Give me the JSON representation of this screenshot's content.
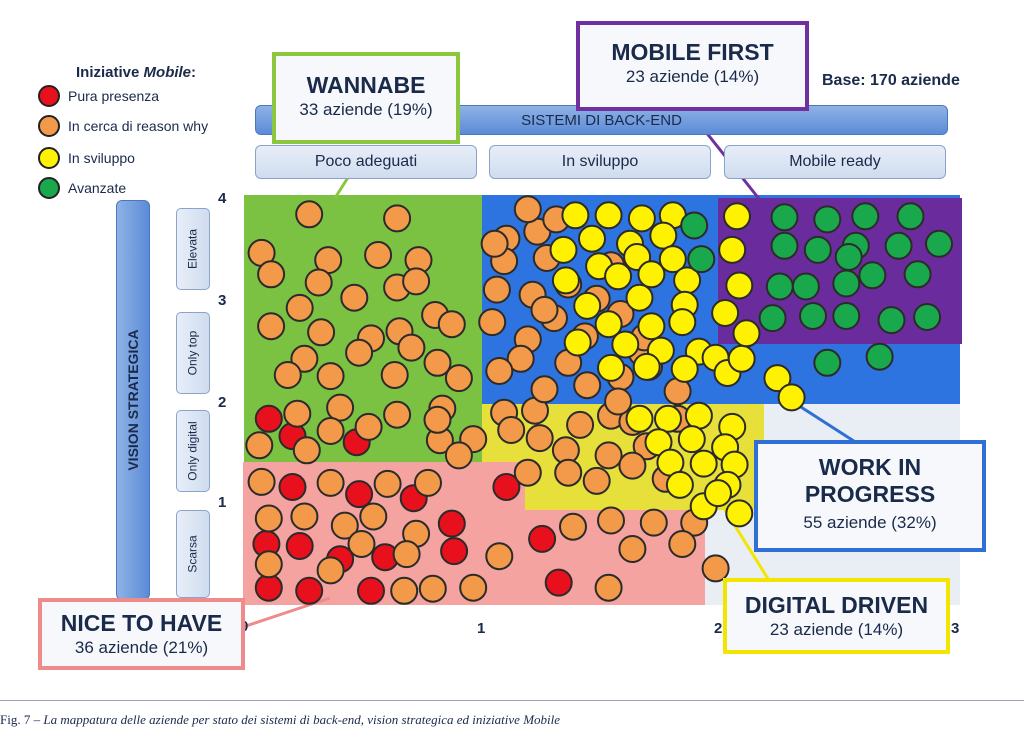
{
  "legend": {
    "title_prefix": "Iniziative ",
    "title_emph": "Mobile",
    "title_suffix": ":",
    "items": [
      {
        "label": "Pura presenza",
        "color": "#e8101c"
      },
      {
        "label": "In cerca di reason why",
        "color": "#f39a4a"
      },
      {
        "label": "In sviluppo",
        "color": "#fff200"
      },
      {
        "label": "Avanzate",
        "color": "#1aa84c"
      }
    ]
  },
  "base_label": "Base: 170 aziende",
  "x_axis": {
    "title": "SISTEMI DI BACK-END",
    "columns": [
      "Poco adeguati",
      "In sviluppo",
      "Mobile ready"
    ],
    "ticks": [
      "0",
      "1",
      "2",
      "3"
    ]
  },
  "y_axis": {
    "title": "VISION STRATEGICA",
    "rows": [
      "Elevata",
      "Only top",
      "Only digital",
      "Scarsa"
    ],
    "ticks": [
      "4",
      "3",
      "2",
      "1",
      "0"
    ]
  },
  "callouts": [
    {
      "title": "WANNABE",
      "subtitle": "33 aziende (19%)",
      "border": "#8cc63f"
    },
    {
      "title": "MOBILE FIRST",
      "subtitle": "23 aziende (14%)",
      "border": "#7030a0"
    },
    {
      "title": "WORK IN PROGRESS",
      "title_line1": "WORK IN",
      "title_line2": "PROGRESS",
      "subtitle": "55 aziende (32%)",
      "border": "#2f6fd6"
    },
    {
      "title": "DIGITAL DRIVEN",
      "subtitle": "23 aziende (14%)",
      "border": "#f2e600"
    },
    {
      "title": "NICE TO HAVE",
      "subtitle": "36 aziende (21%)",
      "border": "#ef8b8b"
    }
  ],
  "caption": {
    "prefix": "Fig. 7 – ",
    "text": "La mappatura delle aziende per stato dei sistemi di back-end, vision strategica ed iniziative Mobile"
  },
  "chart_data": {
    "type": "scatter",
    "xlabel": "SISTEMI DI BACK-END",
    "ylabel": "VISION STRATEGICA",
    "xlim": [
      0,
      3
    ],
    "ylim": [
      0,
      4
    ],
    "segments": [
      {
        "name": "WANNABE",
        "companies": 33,
        "share": "19%",
        "color": "#7cc242"
      },
      {
        "name": "MOBILE FIRST",
        "companies": 23,
        "share": "14%",
        "color": "#6a2c9c"
      },
      {
        "name": "WORK IN PROGRESS",
        "companies": 55,
        "share": "32%",
        "color": "#2e74e0"
      },
      {
        "name": "DIGITAL DRIVEN",
        "companies": 23,
        "share": "14%",
        "color": "#e8e03a"
      },
      {
        "name": "NICE TO HAVE",
        "companies": 36,
        "share": "21%",
        "color": "#f4a3a0"
      }
    ],
    "series": [
      {
        "name": "Pura presenza",
        "points": [
          [
            0.1,
            1.83
          ],
          [
            0.2,
            1.66
          ],
          [
            0.47,
            1.6
          ],
          [
            0.2,
            1.16
          ],
          [
            0.48,
            1.09
          ],
          [
            0.71,
            1.05
          ],
          [
            1.1,
            1.16
          ],
          [
            0.09,
            0.6
          ],
          [
            0.23,
            0.58
          ],
          [
            0.4,
            0.45
          ],
          [
            0.88,
            0.53
          ],
          [
            0.87,
            0.8
          ],
          [
            0.59,
            0.47
          ],
          [
            0.53,
            0.14
          ],
          [
            0.27,
            0.14
          ],
          [
            0.1,
            0.17
          ],
          [
            1.25,
            0.65
          ],
          [
            1.32,
            0.22
          ]
        ]
      },
      {
        "name": "In cerca di reason why",
        "points": [
          [
            0.27,
            3.84
          ],
          [
            0.64,
            3.8
          ],
          [
            0.07,
            3.46
          ],
          [
            0.35,
            3.39
          ],
          [
            0.56,
            3.44
          ],
          [
            0.73,
            3.39
          ],
          [
            0.11,
            3.25
          ],
          [
            0.31,
            3.17
          ],
          [
            0.46,
            3.02
          ],
          [
            0.64,
            3.12
          ],
          [
            0.72,
            3.18
          ],
          [
            0.23,
            2.92
          ],
          [
            0.8,
            2.85
          ],
          [
            0.11,
            2.74
          ],
          [
            0.32,
            2.68
          ],
          [
            0.53,
            2.62
          ],
          [
            0.65,
            2.69
          ],
          [
            0.87,
            2.76
          ],
          [
            0.25,
            2.42
          ],
          [
            0.48,
            2.48
          ],
          [
            0.7,
            2.53
          ],
          [
            0.81,
            2.38
          ],
          [
            0.18,
            2.26
          ],
          [
            0.36,
            2.25
          ],
          [
            0.63,
            2.26
          ],
          [
            0.9,
            2.23
          ],
          [
            0.22,
            1.88
          ],
          [
            0.4,
            1.94
          ],
          [
            0.64,
            1.87
          ],
          [
            0.83,
            1.93
          ],
          [
            0.06,
            1.57
          ],
          [
            0.26,
            1.52
          ],
          [
            0.36,
            1.71
          ],
          [
            0.52,
            1.75
          ],
          [
            0.82,
            1.62
          ],
          [
            0.96,
            1.63
          ],
          [
            0.81,
            1.82
          ],
          [
            0.9,
            1.47
          ],
          [
            0.07,
            1.21
          ],
          [
            0.36,
            1.2
          ],
          [
            0.77,
            1.2
          ],
          [
            0.6,
            1.19
          ],
          [
            0.1,
            0.85
          ],
          [
            0.25,
            0.87
          ],
          [
            0.42,
            0.78
          ],
          [
            0.54,
            0.87
          ],
          [
            0.72,
            0.7
          ],
          [
            0.1,
            0.4
          ],
          [
            0.49,
            0.6
          ],
          [
            0.68,
            0.5
          ],
          [
            0.79,
            0.16
          ],
          [
            0.96,
            0.17
          ],
          [
            1.07,
            0.48
          ],
          [
            0.36,
            0.34
          ],
          [
            0.67,
            0.14
          ],
          [
            1.09,
            1.89
          ],
          [
            1.22,
            1.91
          ],
          [
            1.12,
            1.72
          ],
          [
            1.24,
            1.64
          ],
          [
            1.41,
            1.77
          ],
          [
            1.54,
            1.86
          ],
          [
            1.63,
            1.8
          ],
          [
            1.82,
            1.83
          ],
          [
            1.35,
            1.52
          ],
          [
            1.53,
            1.47
          ],
          [
            1.69,
            1.56
          ],
          [
            1.19,
            1.3
          ],
          [
            1.36,
            1.3
          ],
          [
            1.63,
            1.37
          ],
          [
            1.48,
            1.22
          ],
          [
            1.77,
            1.24
          ],
          [
            1.54,
            0.83
          ],
          [
            1.72,
            0.81
          ],
          [
            1.38,
            0.77
          ],
          [
            1.89,
            0.81
          ],
          [
            1.84,
            0.6
          ],
          [
            1.63,
            0.55
          ],
          [
            1.98,
            0.36
          ],
          [
            1.53,
            0.17
          ],
          [
            1.1,
            3.6
          ],
          [
            1.23,
            3.67
          ],
          [
            1.31,
            3.79
          ],
          [
            1.19,
            3.89
          ],
          [
            1.09,
            3.38
          ],
          [
            1.27,
            3.41
          ],
          [
            1.54,
            3.34
          ],
          [
            1.06,
            3.1
          ],
          [
            1.36,
            3.15
          ],
          [
            1.21,
            3.05
          ],
          [
            1.48,
            3.01
          ],
          [
            1.04,
            2.78
          ],
          [
            1.3,
            2.82
          ],
          [
            1.58,
            2.86
          ],
          [
            1.19,
            2.61
          ],
          [
            1.43,
            2.64
          ],
          [
            1.16,
            2.42
          ],
          [
            1.36,
            2.38
          ],
          [
            1.67,
            2.48
          ],
          [
            1.26,
            2.12
          ],
          [
            1.44,
            2.16
          ],
          [
            1.58,
            2.24
          ],
          [
            1.07,
            2.3
          ],
          [
            1.7,
            2.34
          ],
          [
            1.57,
            2.0
          ],
          [
            1.82,
            2.1
          ],
          [
            1.26,
            2.9
          ],
          [
            1.68,
            2.63
          ],
          [
            1.05,
            3.55
          ]
        ]
      },
      {
        "name": "In sviluppo",
        "points": [
          [
            1.39,
            3.83
          ],
          [
            1.53,
            3.83
          ],
          [
            1.67,
            3.8
          ],
          [
            1.8,
            3.83
          ],
          [
            1.46,
            3.6
          ],
          [
            1.62,
            3.55
          ],
          [
            1.76,
            3.63
          ],
          [
            1.34,
            3.49
          ],
          [
            1.49,
            3.33
          ],
          [
            1.65,
            3.42
          ],
          [
            1.8,
            3.4
          ],
          [
            1.57,
            3.23
          ],
          [
            1.71,
            3.25
          ],
          [
            1.86,
            3.19
          ],
          [
            1.35,
            3.19
          ],
          [
            1.66,
            3.02
          ],
          [
            1.85,
            2.95
          ],
          [
            1.44,
            2.94
          ],
          [
            1.53,
            2.76
          ],
          [
            1.71,
            2.74
          ],
          [
            1.84,
            2.78
          ],
          [
            1.4,
            2.58
          ],
          [
            1.6,
            2.56
          ],
          [
            1.75,
            2.5
          ],
          [
            1.91,
            2.49
          ],
          [
            1.54,
            2.33
          ],
          [
            1.69,
            2.34
          ],
          [
            1.85,
            2.32
          ],
          [
            1.98,
            2.43
          ],
          [
            2.03,
            2.28
          ],
          [
            2.09,
            2.42
          ],
          [
            2.24,
            2.23
          ],
          [
            2.3,
            2.04
          ],
          [
            2.07,
            3.82
          ],
          [
            2.05,
            3.49
          ],
          [
            2.08,
            3.14
          ],
          [
            2.02,
            2.87
          ],
          [
            2.11,
            2.67
          ],
          [
            1.66,
            1.83
          ],
          [
            1.78,
            1.83
          ],
          [
            1.91,
            1.86
          ],
          [
            2.05,
            1.75
          ],
          [
            1.74,
            1.6
          ],
          [
            1.88,
            1.63
          ],
          [
            2.02,
            1.55
          ],
          [
            1.79,
            1.4
          ],
          [
            1.93,
            1.39
          ],
          [
            2.06,
            1.38
          ],
          [
            1.83,
            1.18
          ],
          [
            2.03,
            1.18
          ],
          [
            1.93,
            0.97
          ],
          [
            2.08,
            0.9
          ],
          [
            1.99,
            1.1
          ]
        ]
      },
      {
        "name": "Avanzate",
        "points": [
          [
            1.89,
            3.73
          ],
          [
            2.27,
            3.81
          ],
          [
            2.45,
            3.79
          ],
          [
            2.61,
            3.82
          ],
          [
            2.8,
            3.82
          ],
          [
            1.92,
            3.4
          ],
          [
            2.27,
            3.53
          ],
          [
            2.41,
            3.49
          ],
          [
            2.57,
            3.53
          ],
          [
            2.75,
            3.53
          ],
          [
            2.92,
            3.55
          ],
          [
            2.25,
            3.13
          ],
          [
            2.36,
            3.13
          ],
          [
            2.53,
            3.16
          ],
          [
            2.64,
            3.24
          ],
          [
            2.83,
            3.25
          ],
          [
            2.22,
            2.82
          ],
          [
            2.39,
            2.84
          ],
          [
            2.53,
            2.84
          ],
          [
            2.72,
            2.8
          ],
          [
            2.87,
            2.83
          ],
          [
            2.45,
            2.38
          ],
          [
            2.67,
            2.44
          ],
          [
            2.54,
            3.42
          ]
        ]
      }
    ]
  }
}
